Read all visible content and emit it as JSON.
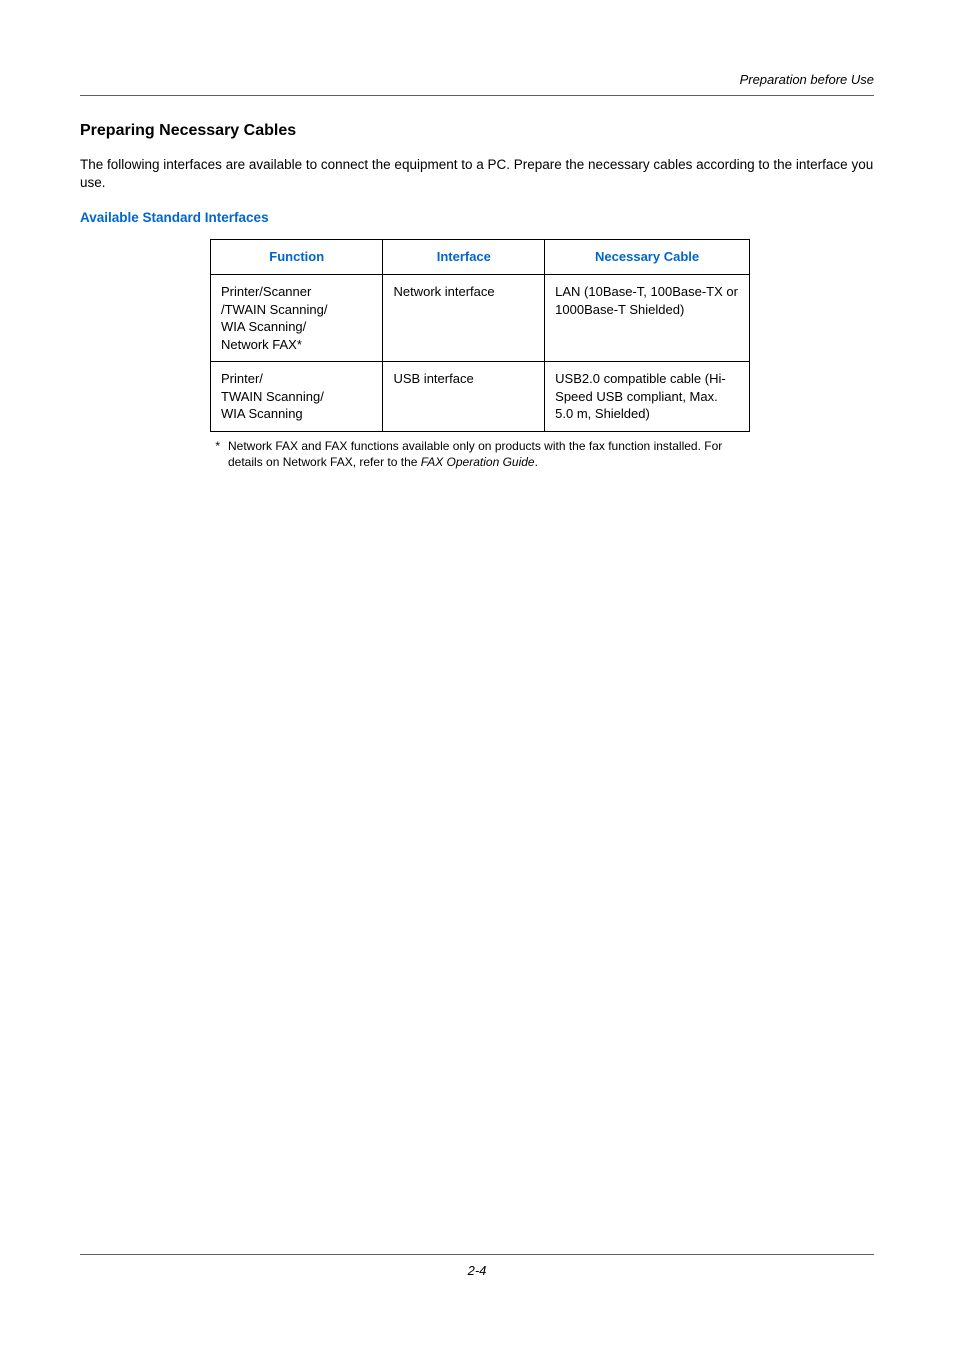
{
  "header": {
    "running": "Preparation before Use"
  },
  "section": {
    "title": "Preparing Necessary Cables",
    "intro": "The following interfaces are available to connect the equipment to a PC. Prepare the necessary cables according to the interface you use.",
    "sub": "Available Standard Interfaces"
  },
  "table": {
    "headers": {
      "function": "Function",
      "interface": "Interface",
      "cable": "Necessary Cable"
    },
    "rows": [
      {
        "function": "Printer/Scanner\n/TWAIN Scanning/\nWIA Scanning/\nNetwork FAX*",
        "interface": "Network interface",
        "cable": "LAN (10Base-T, 100Base-TX or 1000Base-T Shielded)"
      },
      {
        "function": "Printer/\nTWAIN Scanning/\nWIA Scanning",
        "interface": "USB interface",
        "cable": "USB2.0 compatible cable (Hi-Speed USB compliant, Max. 5.0 m, Shielded)"
      }
    ]
  },
  "footnote": {
    "star": "*",
    "text_a": "Network FAX and FAX functions available only on products with the fax function installed. For details on Network FAX, refer to the ",
    "text_b": "FAX Operation Guide",
    "text_c": "."
  },
  "footer": {
    "page": "2-4"
  },
  "style": {
    "link_color": "#0066cc",
    "text_color": "#000000",
    "rule_color": "#606060"
  }
}
